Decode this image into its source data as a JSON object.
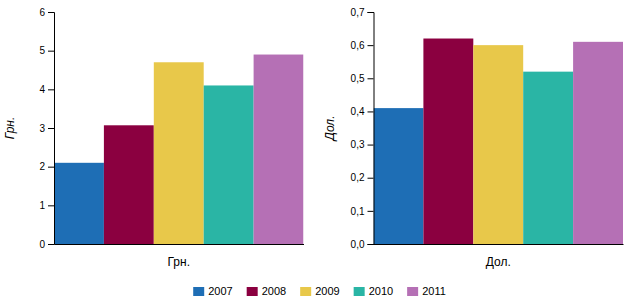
{
  "chart_data": [
    {
      "type": "bar",
      "categories": [
        "2007",
        "2008",
        "2009",
        "2010",
        "2011"
      ],
      "values": [
        2.1,
        3.07,
        4.7,
        4.1,
        4.9
      ],
      "colors": [
        "#1e6eb5",
        "#8b0040",
        "#e8c84a",
        "#2ab5a5",
        "#b570b5"
      ],
      "xlabel": "Грн.",
      "ylabel": "Грн.",
      "ylim": [
        0,
        6
      ],
      "yticks": [
        0,
        1,
        2,
        3,
        4,
        5,
        6
      ],
      "grid": false,
      "tick_labels": "y",
      "legend": "bottom"
    },
    {
      "type": "bar",
      "categories": [
        "2007",
        "2008",
        "2009",
        "2010",
        "2011"
      ],
      "values": [
        0.41,
        0.62,
        0.6,
        0.52,
        0.61
      ],
      "colors": [
        "#1e6eb5",
        "#8b0040",
        "#e8c84a",
        "#2ab5a5",
        "#b570b5"
      ],
      "xlabel": "Дол.",
      "ylabel": "Дол.",
      "ylim": [
        0.0,
        0.7
      ],
      "yticks": [
        {
          "value": 0.0,
          "label": "0,0"
        },
        {
          "value": 0.1,
          "label": "0,1"
        },
        {
          "value": 0.2,
          "label": "0,2"
        },
        {
          "value": 0.3,
          "label": "0,3"
        },
        {
          "value": 0.4,
          "label": "0,4"
        },
        {
          "value": 0.5,
          "label": "0,5"
        },
        {
          "value": 0.6,
          "label": "0,6"
        },
        {
          "value": 0.7,
          "label": "0,7"
        }
      ],
      "grid": false,
      "tick_labels": "y"
    }
  ]
}
